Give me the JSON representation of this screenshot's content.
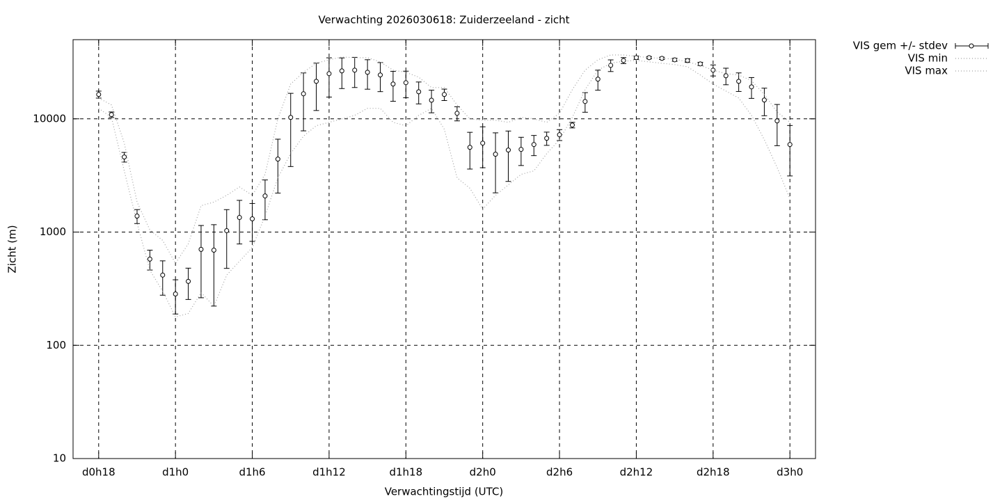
{
  "chart_data": {
    "type": "errorline",
    "title": "Verwachting 2026030618: Zuiderzeeland - zicht",
    "xlabel": "Verwachtingstijd (UTC)",
    "ylabel": "Zicht (m)",
    "x": [
      18,
      19,
      20,
      21,
      22,
      23,
      24,
      25,
      26,
      27,
      28,
      29,
      30,
      31,
      32,
      33,
      34,
      35,
      36,
      37,
      38,
      39,
      40,
      41,
      42,
      43,
      44,
      45,
      46,
      47,
      48,
      49,
      50,
      51,
      52,
      53,
      54,
      55,
      56,
      57,
      58,
      59,
      60,
      61,
      62,
      63,
      64,
      65,
      66,
      67,
      68,
      69,
      70,
      71,
      72
    ],
    "xlim": [
      16,
      74
    ],
    "xticks": [
      {
        "value": 18,
        "label": "d0h18"
      },
      {
        "value": 24,
        "label": "d1h0"
      },
      {
        "value": 30,
        "label": "d1h6"
      },
      {
        "value": 36,
        "label": "d1h12"
      },
      {
        "value": 42,
        "label": "d1h18"
      },
      {
        "value": 48,
        "label": "d2h0"
      },
      {
        "value": 54,
        "label": "d2h6"
      },
      {
        "value": 60,
        "label": "d2h12"
      },
      {
        "value": 66,
        "label": "d2h18"
      },
      {
        "value": 72,
        "label": "d3h0"
      }
    ],
    "ylim": [
      10,
      50000
    ],
    "yticks": [
      10,
      100,
      1000,
      10000
    ],
    "log_y": true,
    "grid": true,
    "legend": "outside-right-top",
    "series": [
      {
        "name": "VIS gem +/- stdev",
        "color": "#000000",
        "values": [
          16400,
          10880,
          4600,
          1384,
          577,
          417,
          284,
          367,
          703,
          692,
          1028,
          1345,
          1308,
          2085,
          4410,
          10290,
          16630,
          21440,
          25060,
          26500,
          26900,
          25760,
          24380,
          20280,
          20850,
          17340,
          14600,
          16400,
          11190,
          5600,
          6100,
          4870,
          5300,
          5370,
          5930,
          6730,
          7230,
          8810,
          14230,
          22390,
          29650,
          32730,
          34670,
          34670,
          34200,
          33200,
          32700,
          30550,
          26900,
          23990,
          21440,
          19150,
          14650,
          9590,
          5930
        ],
        "errors": [
          1160,
          610,
          450,
          195,
          115,
          140,
          95,
          113,
          440,
          470,
          550,
          560,
          480,
          800,
          2200,
          6500,
          8800,
          9600,
          9500,
          8000,
          8000,
          7500,
          7000,
          6000,
          5500,
          3800,
          3300,
          1900,
          1600,
          2000,
          2400,
          2650,
          2500,
          1500,
          1200,
          900,
          800,
          500,
          2800,
          4500,
          3500,
          2000,
          1200,
          800,
          800,
          1000,
          1200,
          1000,
          3000,
          4000,
          4000,
          4000,
          4000,
          3800,
          2800
        ]
      },
      {
        "name": "VIS min",
        "color": "#a0a0a0",
        "values": [
          12370,
          10290,
          3470,
          1202,
          460,
          301,
          178,
          191,
          292,
          221,
          417,
          552,
          733,
          1384,
          3010,
          4930,
          7030,
          8690,
          9310,
          10000,
          10730,
          12370,
          12370,
          9310,
          8690,
          10730,
          12370,
          8090,
          3010,
          2440,
          1590,
          2110,
          2610,
          3230,
          3470,
          4930,
          6550,
          10290,
          18110,
          26900,
          30970,
          32280,
          32730,
          31830,
          30970,
          30110,
          28840,
          24380,
          20280,
          17600,
          15280,
          10730,
          6550,
          3720,
          1970
        ]
      },
      {
        "name": "VIS max",
        "color": "#a0a0a0",
        "values": [
          15280,
          13270,
          6100,
          1840,
          1043,
          844,
          530,
          787,
          1710,
          1840,
          2110,
          2500,
          2110,
          3230,
          10000,
          20280,
          25760,
          30970,
          33200,
          35160,
          34670,
          34670,
          31830,
          26900,
          25760,
          23330,
          18890,
          18890,
          13270,
          10000,
          9720,
          9720,
          9310,
          10290,
          10000,
          9310,
          11190,
          18110,
          26900,
          33200,
          36650,
          36650,
          35650,
          34670,
          34200,
          33700,
          31830,
          29650,
          26900,
          25060,
          24380,
          21730,
          16400,
          11510,
          9310
        ]
      }
    ]
  }
}
